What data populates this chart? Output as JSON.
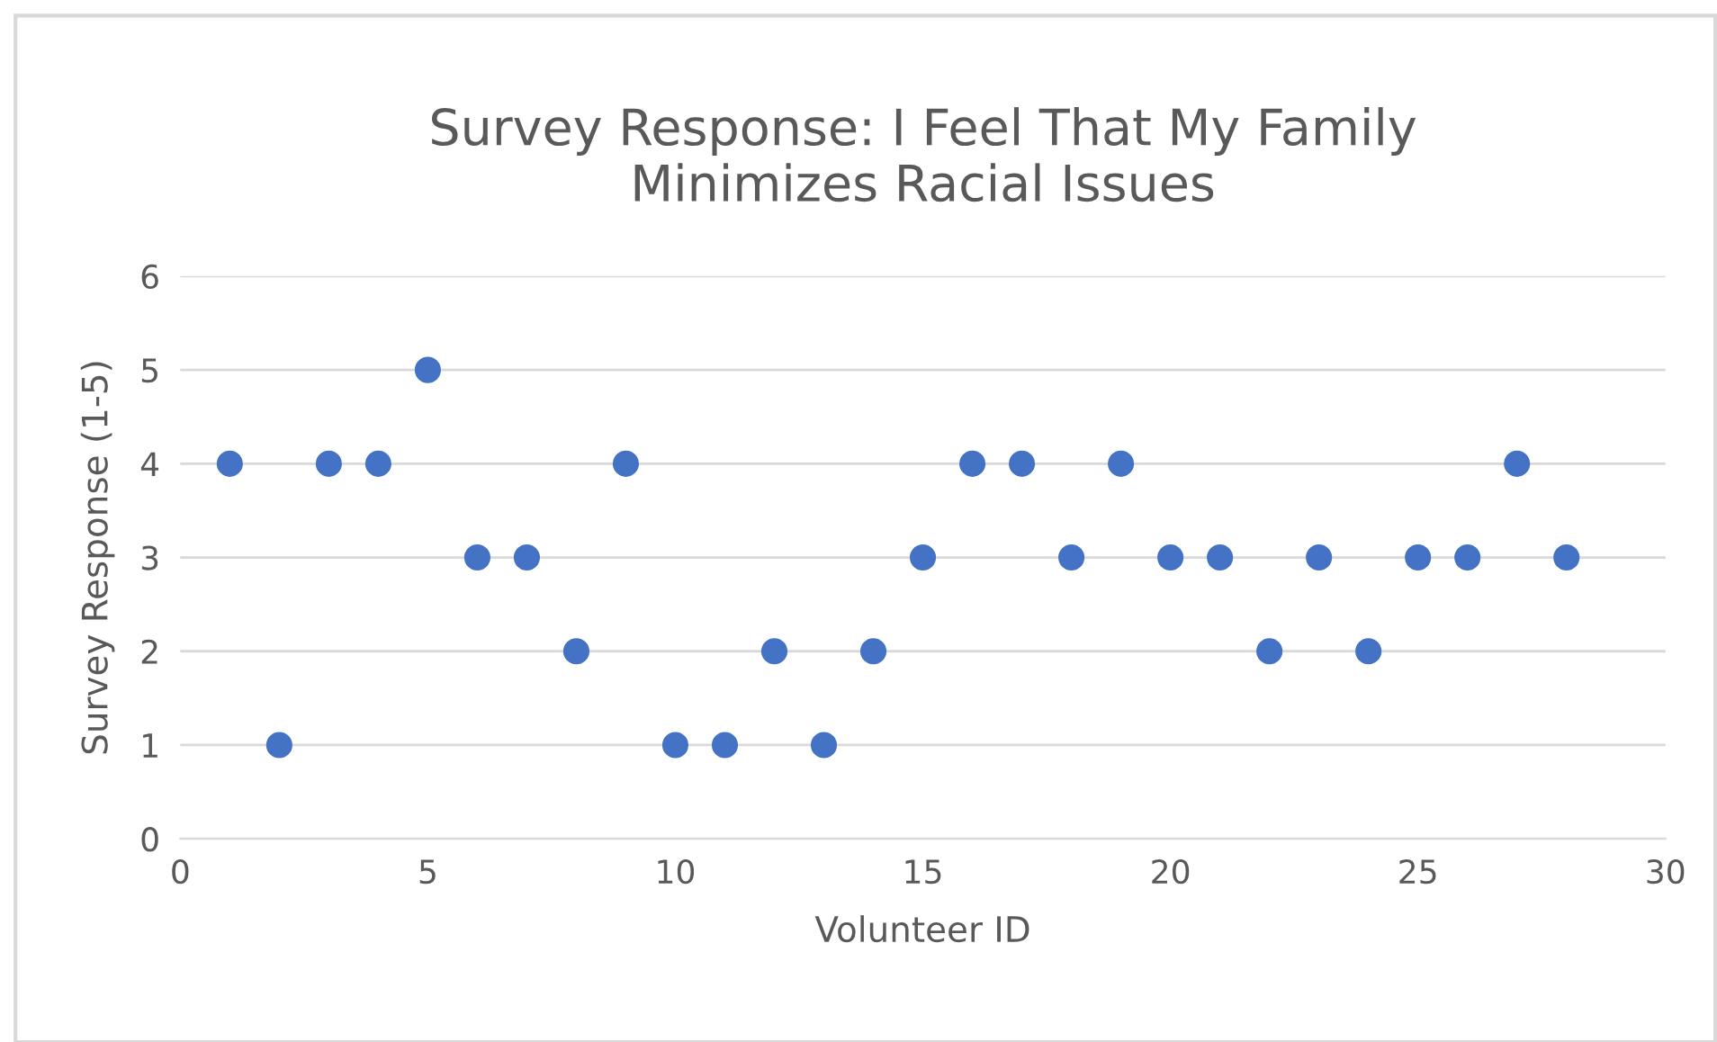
{
  "chart_data": {
    "type": "scatter",
    "title": "Survey Response: I Feel That My Family\nMinimizes Racial Issues",
    "xlabel": "Volunteer ID",
    "ylabel": "Survey Response (1-5)",
    "x": [
      1,
      2,
      3,
      4,
      5,
      6,
      7,
      8,
      9,
      10,
      11,
      12,
      13,
      14,
      15,
      16,
      17,
      18,
      19,
      20,
      21,
      22,
      23,
      24,
      25,
      26,
      27,
      28
    ],
    "series": [
      {
        "color": "#4472c4",
        "values": [
          4,
          1,
          4,
          4,
          5,
          3,
          3,
          2,
          4,
          1,
          1,
          2,
          1,
          2,
          3,
          4,
          4,
          3,
          4,
          3,
          3,
          2,
          3,
          2,
          3,
          3,
          4,
          3
        ]
      }
    ],
    "xlim": [
      0,
      30
    ],
    "xticks": [
      0,
      5,
      10,
      15,
      20,
      25,
      30
    ],
    "ylim": [
      0,
      6
    ],
    "yticks": [
      0,
      1,
      2,
      3,
      4,
      5,
      6
    ],
    "grid": "y",
    "marker": "circle",
    "legend": false
  }
}
